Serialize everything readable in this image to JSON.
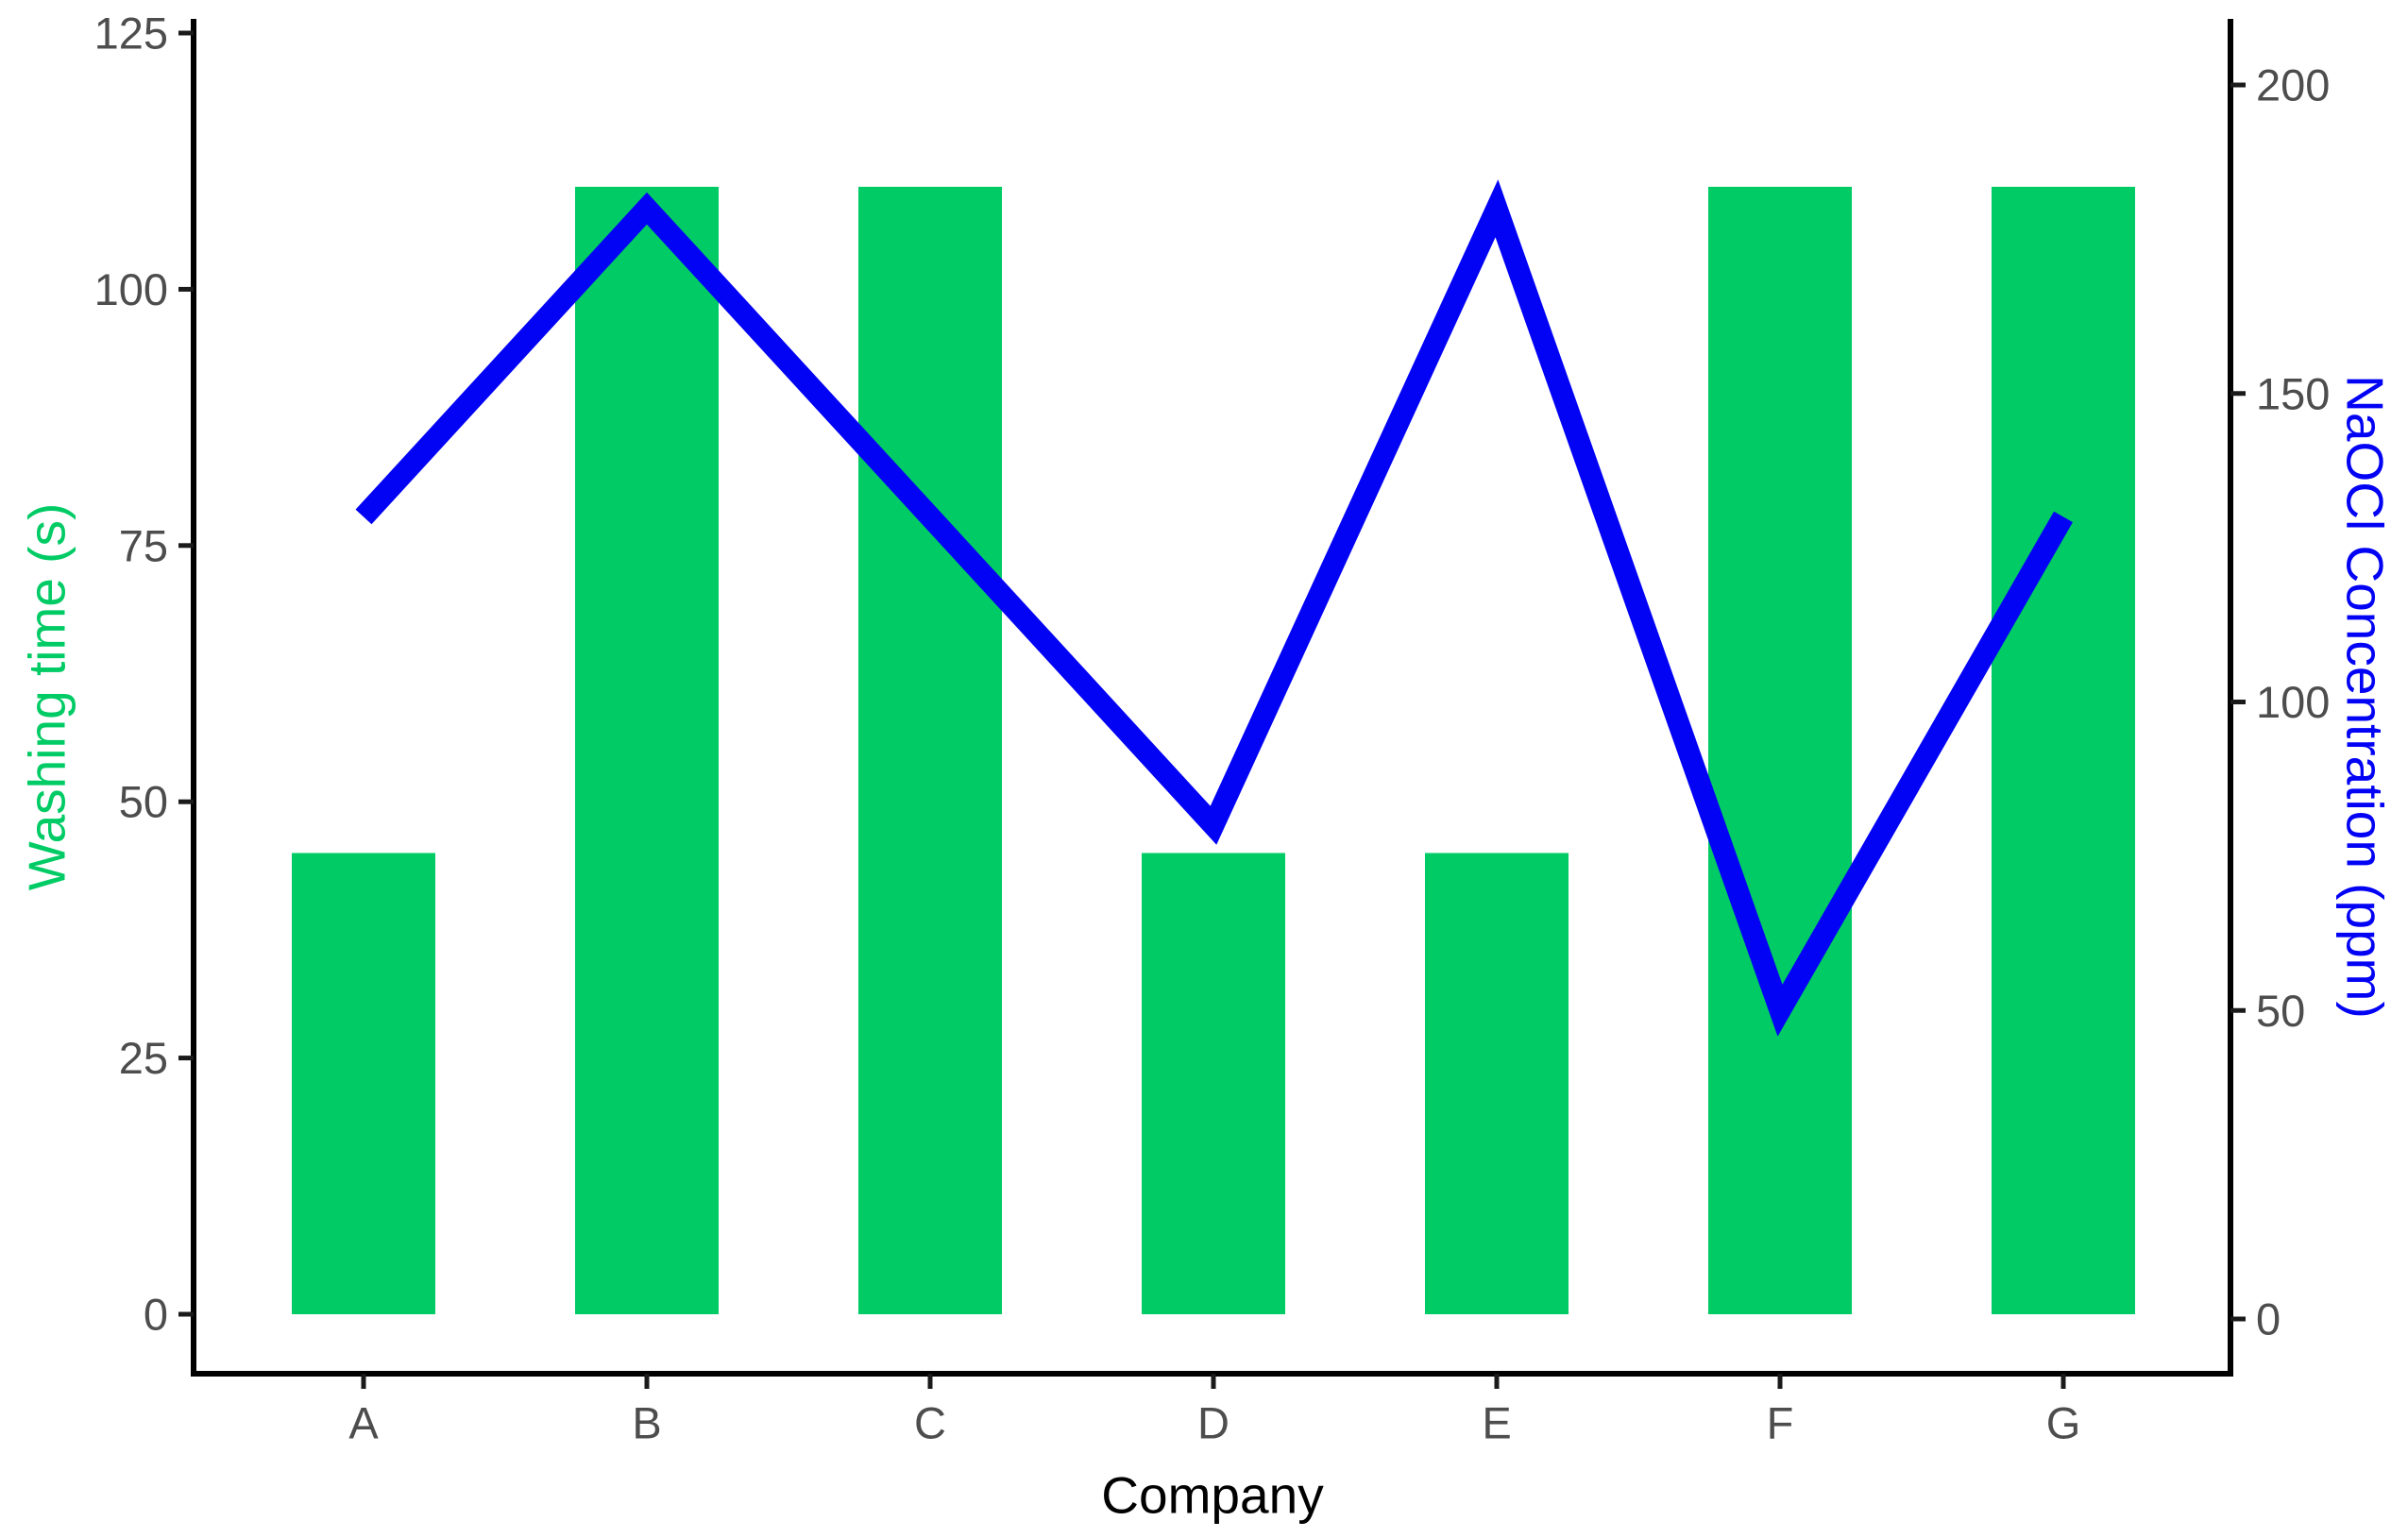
{
  "chart_data": {
    "type": "bar+line",
    "xlabel": "Company",
    "categories": [
      "A",
      "B",
      "C",
      "D",
      "E",
      "F",
      "G"
    ],
    "series": [
      {
        "name": "Washing time (s)",
        "type": "bar",
        "axis": "left",
        "color": "#00CB65",
        "values": [
          45,
          110,
          110,
          45,
          45,
          110,
          110
        ]
      },
      {
        "name": "NaOCl Concentration (ppm)",
        "type": "line",
        "axis": "right",
        "color": "#0202F5",
        "values": [
          130,
          180,
          130,
          80,
          180,
          50,
          130
        ]
      }
    ],
    "left_axis": {
      "label": "Washing time (s)",
      "label_color": "#00CB65",
      "ticks": [
        0,
        25,
        50,
        75,
        100,
        125
      ],
      "range": [
        0,
        125
      ]
    },
    "right_axis": {
      "label": "NaOCl Concentration (ppm)",
      "label_color": "#0202F5",
      "ticks": [
        0,
        50,
        100,
        150,
        200
      ],
      "range": [
        0,
        200
      ]
    },
    "x_axis": {
      "label": "Company",
      "tick_label_color": "#4d4d4d"
    },
    "tick_label_color": "#4d4d4d",
    "axis_line_color": "#000000",
    "grid": "off",
    "legend": "none",
    "background": "#ffffff"
  }
}
